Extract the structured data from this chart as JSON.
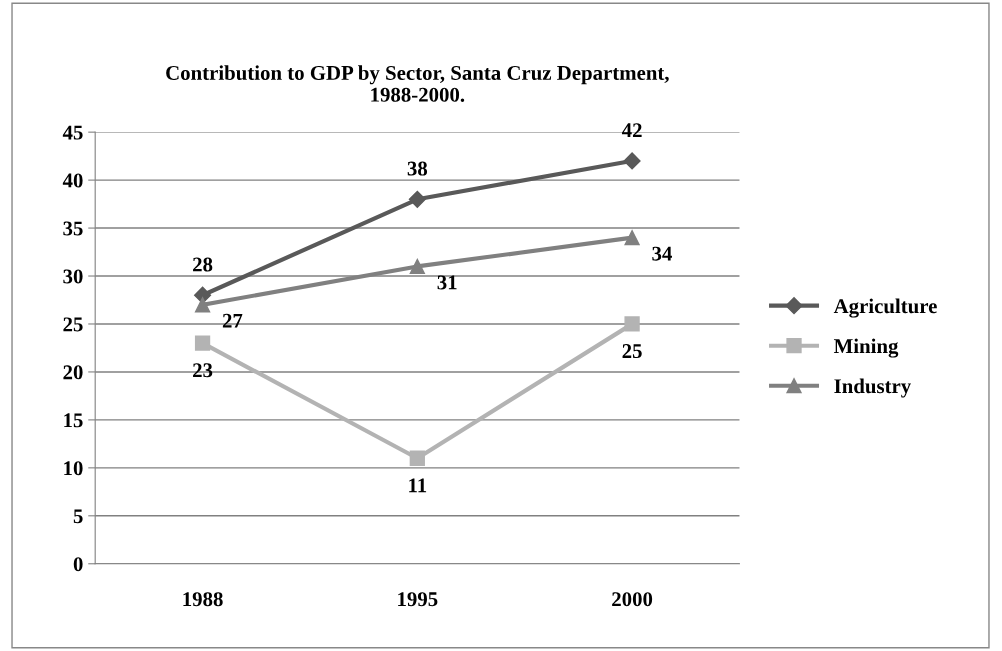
{
  "chart_data": {
    "type": "line",
    "title": "Contribution to GDP by Sector, Santa Cruz Department,\n1988-2000.",
    "categories": [
      "1988",
      "1995",
      "2000"
    ],
    "series": [
      {
        "name": "Agriculture",
        "color": "#595959",
        "marker": "diamond",
        "values": [
          28,
          38,
          42
        ]
      },
      {
        "name": "Mining",
        "color": "#b3b3b3",
        "marker": "square",
        "values": [
          23,
          11,
          25
        ]
      },
      {
        "name": "Industry",
        "color": "#808080",
        "marker": "triangle",
        "values": [
          27,
          31,
          34
        ]
      }
    ],
    "ylim": [
      0,
      45
    ],
    "yticks": [
      0,
      5,
      10,
      15,
      20,
      25,
      30,
      35,
      40,
      45
    ],
    "grid": "y",
    "legend": "right",
    "data_labels": true,
    "line_style": "solid"
  }
}
